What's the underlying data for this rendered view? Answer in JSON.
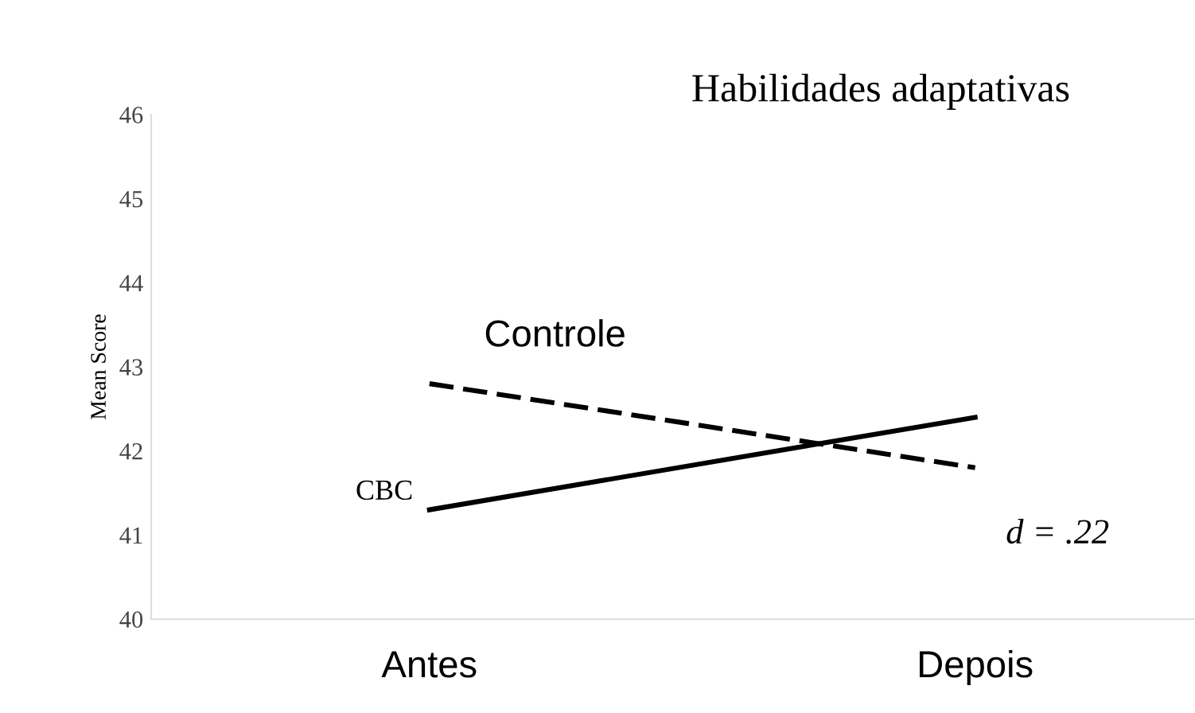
{
  "chart_data": {
    "type": "line",
    "title": "Habilidades adaptativas",
    "ylabel": "Mean Score",
    "categories": [
      "Antes",
      "Depois"
    ],
    "series": [
      {
        "name": "Controle",
        "color": "#000000",
        "values": [
          42.8,
          41.8
        ],
        "line_style": "dashed"
      },
      {
        "name": "CBC",
        "color": "#000000",
        "values": [
          41.3,
          42.4
        ],
        "line_style": "solid"
      }
    ],
    "ylim": [
      40,
      46
    ],
    "yticks": [
      40,
      41,
      42,
      43,
      44,
      45,
      46
    ],
    "grid": false,
    "legend": false,
    "marker": "none",
    "annotations": [
      "d = .22"
    ]
  }
}
